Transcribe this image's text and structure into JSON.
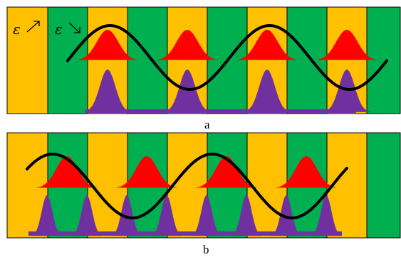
{
  "colors": {
    "band_yellow": "#FFC000",
    "band_green": "#00B050",
    "envelope_red": "#FF0000",
    "profile_purple": "#7030A0",
    "wave": "#000000",
    "border": "#000000"
  },
  "panels": [
    {
      "id": "a",
      "label": "a",
      "band_pattern": [
        "yellow",
        "green",
        "yellow",
        "green",
        "yellow",
        "green",
        "yellow",
        "green",
        "yellow",
        "green"
      ],
      "annotations": {
        "increasing": "ε",
        "decreasing": "ε"
      },
      "envelope_count": 4,
      "profile_shape": "centered-peaks"
    },
    {
      "id": "b",
      "label": "b",
      "band_pattern": [
        "yellow",
        "green",
        "yellow",
        "green",
        "yellow",
        "green",
        "yellow",
        "green",
        "yellow",
        "green"
      ],
      "envelope_count": 4,
      "profile_shape": "split-peaks"
    }
  ]
}
